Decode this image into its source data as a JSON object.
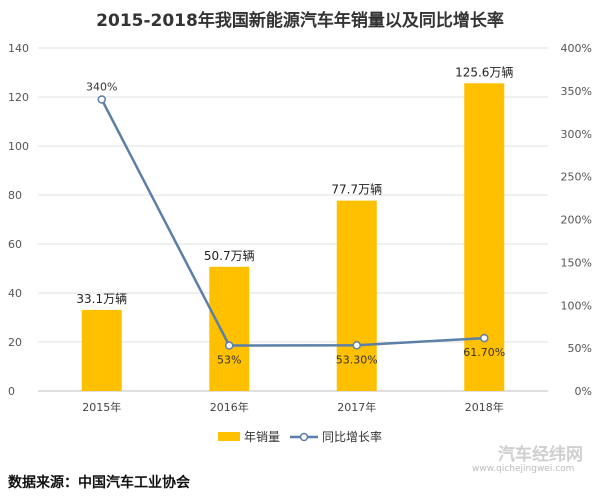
{
  "chart_data": {
    "type": "bar+line",
    "title": "2015-2018年我国新能源汽车年销量以及同比增长率",
    "categories": [
      "2015年",
      "2016年",
      "2017年",
      "2018年"
    ],
    "series": [
      {
        "name": "年销量",
        "type": "bar",
        "axis": "left",
        "values": [
          33.1,
          50.7,
          77.7,
          125.6
        ],
        "labels": [
          "33.1万辆",
          "50.7万辆",
          "77.7万辆",
          "125.6万辆"
        ],
        "color": "#FFC000"
      },
      {
        "name": "同比增长率",
        "type": "line",
        "axis": "right",
        "values": [
          340,
          53,
          53.3,
          61.7
        ],
        "labels": [
          "340%",
          "53%",
          "53.30%",
          "61.70%"
        ],
        "color": "#5B7FA6"
      }
    ],
    "y_left": {
      "ylim": [
        0,
        140
      ],
      "ticks": [
        "0",
        "20",
        "40",
        "60",
        "80",
        "100",
        "120",
        "140"
      ]
    },
    "y_right": {
      "ylim": [
        0,
        400
      ],
      "ticks": [
        "0%",
        "50%",
        "100%",
        "150%",
        "200%",
        "250%",
        "300%",
        "350%",
        "400%"
      ]
    },
    "grid": true,
    "legend": "bottom"
  },
  "footer": {
    "source": "数据来源：中国汽车工业协会"
  },
  "watermark": {
    "name": "汽车经纬网",
    "url": "www.qichejingwei.com"
  }
}
